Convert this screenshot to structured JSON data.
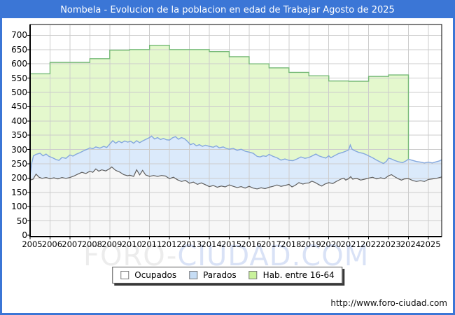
{
  "title": "Nombela - Evolucion de la poblacion en edad de Trabajar Agosto de 2025",
  "watermark": {
    "part1": "FORO-",
    "part2": "CIUDAD.COM"
  },
  "footer": {
    "url": "http://www.foro-ciudad.com"
  },
  "colors": {
    "frame_blue": "#3b76d6",
    "grid": "#cccccc",
    "hab_fill": "#e4f8cd",
    "hab_stroke": "#76b977",
    "parados_fill": "#dbeafb",
    "parados_stroke": "#84a7dd",
    "ocupados_fill": "#f7f7f7",
    "ocupados_stroke": "#5e5e5e",
    "axis": "#000000"
  },
  "legend": [
    {
      "label": "Ocupados",
      "swatch": "#ffffff"
    },
    {
      "label": "Parados",
      "swatch": "#c6ddf5"
    },
    {
      "label": "Hab. entre 16-64",
      "swatch": "#c9f29b"
    }
  ],
  "chart_data": {
    "type": "area",
    "title": "Nombela - Evolucion de la poblacion en edad de Trabajar Agosto de 2025",
    "xlabel": "",
    "ylabel": "",
    "x_axis": {
      "min": 2005,
      "max": 2025.67
    },
    "y_axis": {
      "min": 0,
      "max": 700,
      "tick_step": 50
    },
    "y_ticks": [
      0,
      50,
      100,
      150,
      200,
      250,
      300,
      350,
      400,
      450,
      500,
      550,
      600,
      650,
      700
    ],
    "x_ticks": [
      2005,
      2006,
      2007,
      2008,
      2009,
      2010,
      2011,
      2012,
      2013,
      2014,
      2015,
      2016,
      2017,
      2018,
      2019,
      2020,
      2021,
      2022,
      2023,
      2024,
      2025
    ],
    "grid": true,
    "legend_position": "bottom-center",
    "series": [
      {
        "name": "Hab. entre 16-64",
        "style": "annual-step",
        "ends_at": 2024.0,
        "points": [
          [
            2005,
            565
          ],
          [
            2006,
            605
          ],
          [
            2007,
            605
          ],
          [
            2008,
            618
          ],
          [
            2009,
            648
          ],
          [
            2010,
            650
          ],
          [
            2011,
            665
          ],
          [
            2012,
            650
          ],
          [
            2013,
            650
          ],
          [
            2014,
            643
          ],
          [
            2015,
            625
          ],
          [
            2016,
            600
          ],
          [
            2017,
            586
          ],
          [
            2018,
            570
          ],
          [
            2019,
            558
          ],
          [
            2020,
            540
          ],
          [
            2021,
            539
          ],
          [
            2022,
            556
          ],
          [
            2023,
            561
          ],
          [
            2024,
            561
          ]
        ]
      },
      {
        "name": "Parados",
        "style": "monthly-band-top",
        "points": [
          [
            2005.0,
            208
          ],
          [
            2005.08,
            252
          ],
          [
            2005.17,
            278
          ],
          [
            2005.3,
            283
          ],
          [
            2005.5,
            287
          ],
          [
            2005.65,
            278
          ],
          [
            2005.8,
            284
          ],
          [
            2005.95,
            276
          ],
          [
            2006.1,
            272
          ],
          [
            2006.3,
            265
          ],
          [
            2006.45,
            262
          ],
          [
            2006.6,
            272
          ],
          [
            2006.8,
            269
          ],
          [
            2007.0,
            281
          ],
          [
            2007.15,
            277
          ],
          [
            2007.3,
            283
          ],
          [
            2007.5,
            289
          ],
          [
            2007.7,
            296
          ],
          [
            2007.9,
            302
          ],
          [
            2008.0,
            306
          ],
          [
            2008.15,
            303
          ],
          [
            2008.3,
            309
          ],
          [
            2008.5,
            305
          ],
          [
            2008.7,
            311
          ],
          [
            2008.85,
            307
          ],
          [
            2009.0,
            319
          ],
          [
            2009.15,
            331
          ],
          [
            2009.3,
            322
          ],
          [
            2009.45,
            329
          ],
          [
            2009.6,
            324
          ],
          [
            2009.75,
            330
          ],
          [
            2009.9,
            326
          ],
          [
            2010.05,
            329
          ],
          [
            2010.2,
            322
          ],
          [
            2010.35,
            331
          ],
          [
            2010.5,
            324
          ],
          [
            2010.65,
            330
          ],
          [
            2010.8,
            335
          ],
          [
            2011.0,
            342
          ],
          [
            2011.1,
            347
          ],
          [
            2011.25,
            337
          ],
          [
            2011.4,
            342
          ],
          [
            2011.55,
            335
          ],
          [
            2011.7,
            339
          ],
          [
            2011.85,
            334
          ],
          [
            2012.0,
            333
          ],
          [
            2012.15,
            341
          ],
          [
            2012.3,
            345
          ],
          [
            2012.45,
            336
          ],
          [
            2012.6,
            342
          ],
          [
            2012.75,
            338
          ],
          [
            2012.9,
            329
          ],
          [
            2013.05,
            317
          ],
          [
            2013.2,
            321
          ],
          [
            2013.35,
            313
          ],
          [
            2013.5,
            317
          ],
          [
            2013.65,
            311
          ],
          [
            2013.8,
            315
          ],
          [
            2014.0,
            311
          ],
          [
            2014.2,
            308
          ],
          [
            2014.35,
            313
          ],
          [
            2014.5,
            306
          ],
          [
            2014.7,
            309
          ],
          [
            2014.85,
            304
          ],
          [
            2015.0,
            301
          ],
          [
            2015.2,
            304
          ],
          [
            2015.4,
            297
          ],
          [
            2015.6,
            301
          ],
          [
            2015.8,
            294
          ],
          [
            2016.0,
            291
          ],
          [
            2016.2,
            287
          ],
          [
            2016.4,
            276
          ],
          [
            2016.55,
            274
          ],
          [
            2016.7,
            278
          ],
          [
            2016.85,
            276
          ],
          [
            2017.0,
            283
          ],
          [
            2017.2,
            276
          ],
          [
            2017.4,
            271
          ],
          [
            2017.6,
            263
          ],
          [
            2017.8,
            267
          ],
          [
            2018.0,
            262
          ],
          [
            2018.2,
            261
          ],
          [
            2018.4,
            267
          ],
          [
            2018.6,
            274
          ],
          [
            2018.8,
            269
          ],
          [
            2019.0,
            272
          ],
          [
            2019.2,
            279
          ],
          [
            2019.35,
            284
          ],
          [
            2019.5,
            278
          ],
          [
            2019.7,
            273
          ],
          [
            2019.85,
            270
          ],
          [
            2020.0,
            278
          ],
          [
            2020.1,
            271
          ],
          [
            2020.3,
            279
          ],
          [
            2020.5,
            286
          ],
          [
            2020.7,
            290
          ],
          [
            2020.85,
            294
          ],
          [
            2021.0,
            299
          ],
          [
            2021.08,
            316
          ],
          [
            2021.17,
            301
          ],
          [
            2021.3,
            296
          ],
          [
            2021.5,
            290
          ],
          [
            2021.7,
            287
          ],
          [
            2021.85,
            283
          ],
          [
            2022.0,
            278
          ],
          [
            2022.2,
            271
          ],
          [
            2022.4,
            263
          ],
          [
            2022.6,
            256
          ],
          [
            2022.75,
            251
          ],
          [
            2022.9,
            259
          ],
          [
            2023.0,
            270
          ],
          [
            2023.15,
            267
          ],
          [
            2023.3,
            262
          ],
          [
            2023.5,
            257
          ],
          [
            2023.7,
            254
          ],
          [
            2023.85,
            259
          ],
          [
            2024.0,
            266
          ],
          [
            2024.2,
            262
          ],
          [
            2024.4,
            258
          ],
          [
            2024.6,
            256
          ],
          [
            2024.8,
            253
          ],
          [
            2025.0,
            256
          ],
          [
            2025.2,
            253
          ],
          [
            2025.4,
            257
          ],
          [
            2025.55,
            260
          ],
          [
            2025.67,
            264
          ]
        ]
      },
      {
        "name": "Ocupados",
        "style": "monthly",
        "points": [
          [
            2005.0,
            193
          ],
          [
            2005.15,
            196
          ],
          [
            2005.3,
            214
          ],
          [
            2005.45,
            203
          ],
          [
            2005.6,
            199
          ],
          [
            2005.8,
            202
          ],
          [
            2006.0,
            198
          ],
          [
            2006.2,
            201
          ],
          [
            2006.4,
            197
          ],
          [
            2006.6,
            202
          ],
          [
            2006.8,
            199
          ],
          [
            2007.0,
            202
          ],
          [
            2007.2,
            207
          ],
          [
            2007.4,
            214
          ],
          [
            2007.6,
            220
          ],
          [
            2007.8,
            216
          ],
          [
            2008.0,
            224
          ],
          [
            2008.15,
            220
          ],
          [
            2008.3,
            232
          ],
          [
            2008.45,
            224
          ],
          [
            2008.6,
            229
          ],
          [
            2008.8,
            225
          ],
          [
            2009.0,
            233
          ],
          [
            2009.1,
            239
          ],
          [
            2009.3,
            227
          ],
          [
            2009.5,
            221
          ],
          [
            2009.7,
            212
          ],
          [
            2009.9,
            208
          ],
          [
            2010.0,
            210
          ],
          [
            2010.2,
            206
          ],
          [
            2010.35,
            229
          ],
          [
            2010.5,
            211
          ],
          [
            2010.65,
            227
          ],
          [
            2010.8,
            211
          ],
          [
            2011.0,
            206
          ],
          [
            2011.2,
            209
          ],
          [
            2011.4,
            206
          ],
          [
            2011.6,
            209
          ],
          [
            2011.8,
            207
          ],
          [
            2012.0,
            198
          ],
          [
            2012.2,
            203
          ],
          [
            2012.4,
            194
          ],
          [
            2012.6,
            188
          ],
          [
            2012.8,
            192
          ],
          [
            2013.0,
            182
          ],
          [
            2013.2,
            186
          ],
          [
            2013.4,
            178
          ],
          [
            2013.6,
            183
          ],
          [
            2013.8,
            177
          ],
          [
            2014.0,
            170
          ],
          [
            2014.2,
            174
          ],
          [
            2014.4,
            168
          ],
          [
            2014.6,
            172
          ],
          [
            2014.8,
            169
          ],
          [
            2015.0,
            176
          ],
          [
            2015.2,
            171
          ],
          [
            2015.4,
            167
          ],
          [
            2015.6,
            170
          ],
          [
            2015.8,
            165
          ],
          [
            2016.0,
            171
          ],
          [
            2016.2,
            165
          ],
          [
            2016.4,
            162
          ],
          [
            2016.6,
            166
          ],
          [
            2016.8,
            163
          ],
          [
            2017.0,
            168
          ],
          [
            2017.2,
            171
          ],
          [
            2017.4,
            176
          ],
          [
            2017.6,
            171
          ],
          [
            2017.8,
            174
          ],
          [
            2018.0,
            178
          ],
          [
            2018.15,
            169
          ],
          [
            2018.3,
            174
          ],
          [
            2018.5,
            184
          ],
          [
            2018.7,
            179
          ],
          [
            2018.85,
            182
          ],
          [
            2019.0,
            183
          ],
          [
            2019.15,
            189
          ],
          [
            2019.3,
            185
          ],
          [
            2019.5,
            177
          ],
          [
            2019.65,
            172
          ],
          [
            2019.8,
            179
          ],
          [
            2020.0,
            184
          ],
          [
            2020.2,
            181
          ],
          [
            2020.4,
            189
          ],
          [
            2020.6,
            196
          ],
          [
            2020.75,
            200
          ],
          [
            2020.85,
            193
          ],
          [
            2021.0,
            198
          ],
          [
            2021.1,
            205
          ],
          [
            2021.2,
            196
          ],
          [
            2021.4,
            199
          ],
          [
            2021.6,
            193
          ],
          [
            2021.8,
            196
          ],
          [
            2022.0,
            200
          ],
          [
            2022.2,
            203
          ],
          [
            2022.4,
            197
          ],
          [
            2022.6,
            201
          ],
          [
            2022.8,
            198
          ],
          [
            2023.0,
            208
          ],
          [
            2023.15,
            212
          ],
          [
            2023.3,
            205
          ],
          [
            2023.5,
            197
          ],
          [
            2023.65,
            193
          ],
          [
            2023.8,
            197
          ],
          [
            2024.0,
            198
          ],
          [
            2024.2,
            192
          ],
          [
            2024.4,
            188
          ],
          [
            2024.6,
            191
          ],
          [
            2024.8,
            188
          ],
          [
            2025.0,
            195
          ],
          [
            2025.2,
            197
          ],
          [
            2025.4,
            199
          ],
          [
            2025.67,
            204
          ]
        ]
      }
    ]
  }
}
